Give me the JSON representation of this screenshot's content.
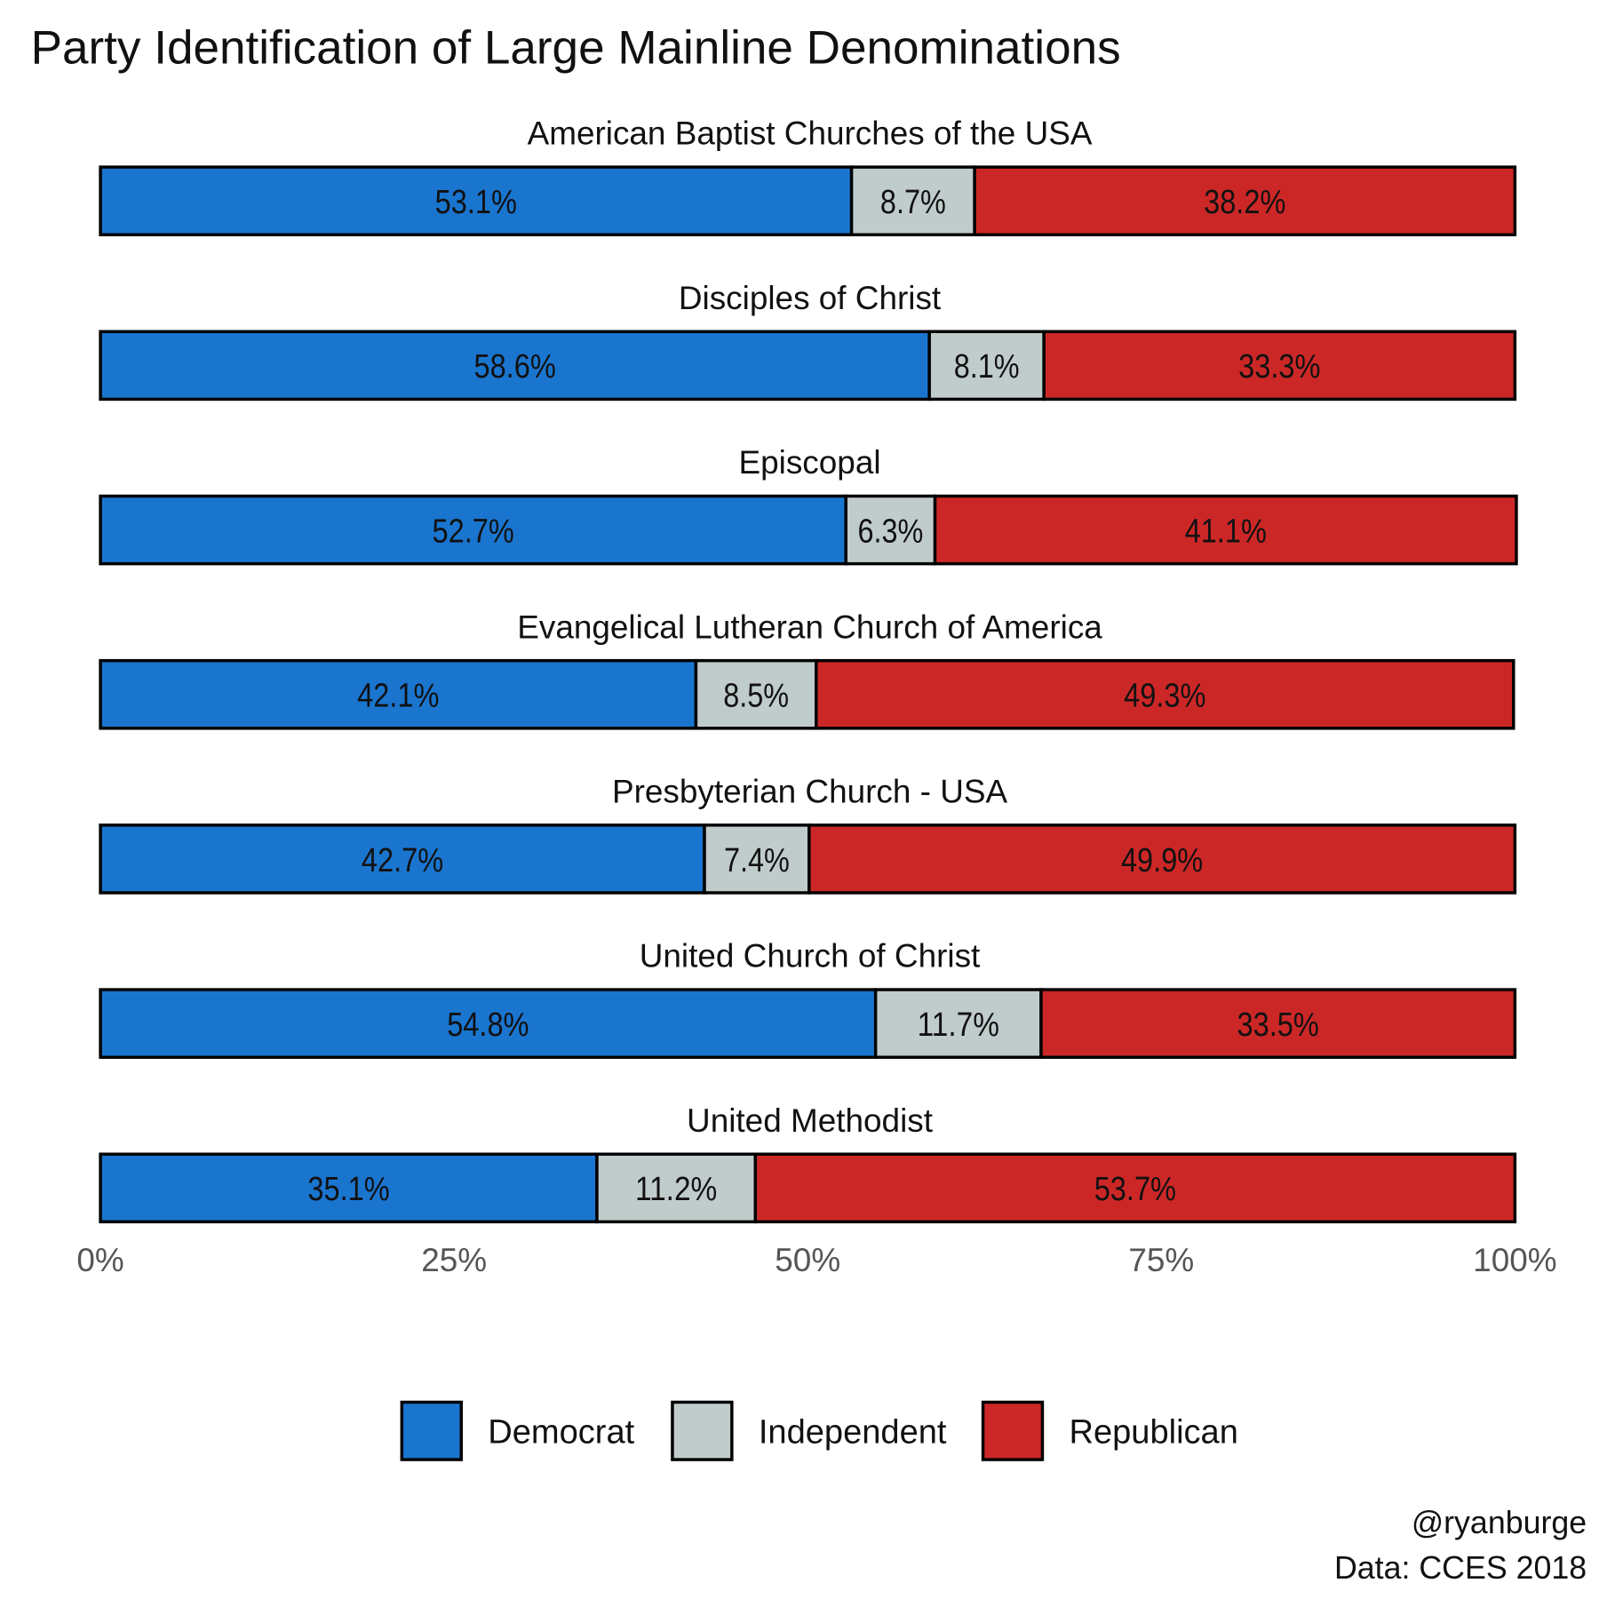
{
  "chart_data": {
    "type": "bar",
    "orientation": "horizontal-stacked-100",
    "title": "Party Identification of Large Mainline Denominations",
    "categories": [
      "American Baptist Churches of the USA",
      "Disciples of Christ",
      "Episcopal",
      "Evangelical Lutheran Church of America",
      "Presbyterian Church - USA",
      "United Church of Christ",
      "United Methodist"
    ],
    "series": [
      {
        "name": "Democrat",
        "color": "#1a75cf",
        "values": [
          53.1,
          58.6,
          52.7,
          42.1,
          42.7,
          54.8,
          35.1
        ]
      },
      {
        "name": "Independent",
        "color": "#c0cccb",
        "values": [
          8.7,
          8.1,
          6.3,
          8.5,
          7.4,
          11.7,
          11.2
        ]
      },
      {
        "name": "Republican",
        "color": "#cc2727",
        "values": [
          38.2,
          33.3,
          41.1,
          49.3,
          49.9,
          33.5,
          53.7
        ]
      }
    ],
    "xlim": [
      0,
      100
    ],
    "x_ticks": [
      "0%",
      "25%",
      "50%",
      "75%",
      "100%"
    ],
    "x_tick_values": [
      0,
      25,
      50,
      75,
      100
    ],
    "legend_position": "bottom",
    "grid": false,
    "caption": [
      "@ryanburge",
      "Data: CCES 2018"
    ]
  }
}
